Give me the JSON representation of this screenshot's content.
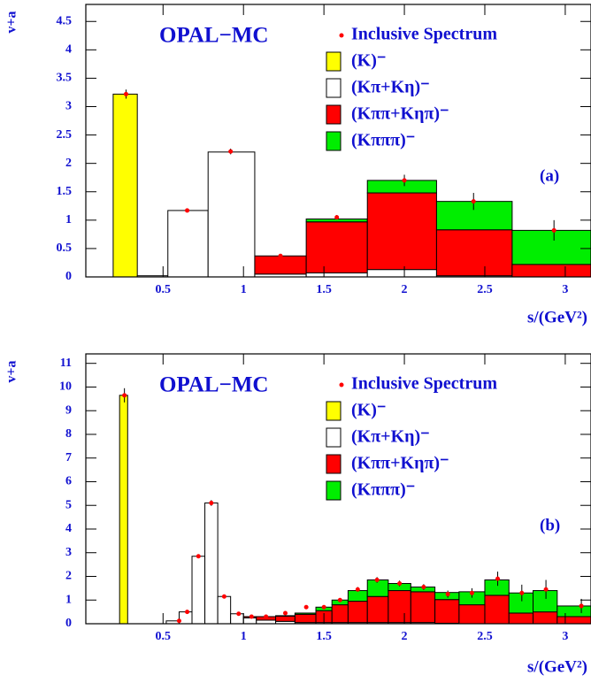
{
  "chart_data": [
    {
      "type": "histogram",
      "title": "OPAL−MC",
      "panel_label": "(a)",
      "ylabel": "v+a",
      "xlabel": "s/(GeV²)",
      "xlim": [
        0.02,
        3.16
      ],
      "ylim": [
        0,
        4.8
      ],
      "xticks": [
        0.5,
        1,
        1.5,
        2,
        2.5,
        3
      ],
      "yticks": [
        0,
        0.5,
        1,
        1.5,
        2,
        2.5,
        3,
        3.5,
        4,
        4.5
      ],
      "bins": [
        0.19,
        0.34,
        0.53,
        0.78,
        1.07,
        1.39,
        1.77,
        2.2,
        2.67,
        3.16
      ],
      "series": [
        {
          "name": "(K)⁻",
          "color": "#ffff00",
          "values": [
            3.22,
            0,
            0,
            0,
            0,
            0,
            0,
            0,
            0
          ]
        },
        {
          "name": "(Kπ+Kη)⁻",
          "color": "#ffffff",
          "values": [
            0,
            0.02,
            1.17,
            2.2,
            0.05,
            0.07,
            0.13,
            0.02,
            0
          ]
        },
        {
          "name": "(Kππ+Kηπ)⁻",
          "color": "#ff0000",
          "values": [
            0,
            0,
            0,
            0,
            0.32,
            0.9,
            1.35,
            0.81,
            0.22
          ]
        },
        {
          "name": "(Kπππ)⁻",
          "color": "#00ee00",
          "values": [
            0,
            0,
            0,
            0,
            0,
            0.05,
            0.22,
            0.5,
            0.6
          ]
        }
      ],
      "points": {
        "name": "Inclusive Spectrum",
        "color": "#ff0000",
        "x": [
          0.27,
          0.65,
          0.92,
          1.23,
          1.58,
          2.0,
          2.43,
          2.93
        ],
        "values": [
          3.22,
          1.17,
          2.21,
          0.37,
          1.05,
          1.7,
          1.33,
          0.82
        ],
        "errors": [
          0.08,
          0.02,
          0.05,
          0.02,
          0.04,
          0.1,
          0.15,
          0.18
        ]
      }
    },
    {
      "type": "histogram",
      "title": "OPAL−MC",
      "panel_label": "(b)",
      "ylabel": "v+a",
      "xlabel": "s/(GeV²)",
      "xlim": [
        0.02,
        3.16
      ],
      "ylim": [
        0,
        11.4
      ],
      "xticks": [
        0.5,
        1,
        1.5,
        2,
        2.5,
        3
      ],
      "yticks": [
        0,
        1,
        2,
        3,
        4,
        5,
        6,
        7,
        8,
        9,
        10,
        11
      ],
      "bins": [
        0.23,
        0.28,
        0.52,
        0.6,
        0.68,
        0.76,
        0.84,
        0.92,
        1.0,
        1.08,
        1.2,
        1.32,
        1.45,
        1.55,
        1.65,
        1.77,
        1.9,
        2.04,
        2.19,
        2.34,
        2.5,
        2.65,
        2.8,
        2.95,
        3.16
      ],
      "series": [
        {
          "name": "(K)⁻",
          "color": "#ffff00",
          "values": [
            9.65,
            0,
            0,
            0,
            0,
            0,
            0,
            0,
            0,
            0,
            0,
            0,
            0,
            0,
            0,
            0,
            0,
            0,
            0,
            0,
            0,
            0,
            0,
            0
          ]
        },
        {
          "name": "(Kπ+Kη)⁻",
          "color": "#ffffff",
          "values": [
            0,
            0,
            0.12,
            0.5,
            2.85,
            5.1,
            1.15,
            0.42,
            0.25,
            0.15,
            0.1,
            0.05,
            0.05,
            0.05,
            0.05,
            0.05,
            0.05,
            0.05,
            0.02,
            0,
            0,
            0,
            0,
            0
          ]
        },
        {
          "name": "(Kππ+Kηπ)⁻",
          "color": "#ff0000",
          "values": [
            0,
            0,
            0,
            0,
            0,
            0,
            0,
            0,
            0.05,
            0.15,
            0.22,
            0.35,
            0.5,
            0.75,
            0.9,
            1.1,
            1.35,
            1.3,
            1.0,
            0.8,
            1.2,
            0.45,
            0.5,
            0.3
          ]
        },
        {
          "name": "(Kπππ)⁻",
          "color": "#00ee00",
          "values": [
            0,
            0,
            0,
            0,
            0,
            0,
            0,
            0,
            0,
            0,
            0.02,
            0.05,
            0.15,
            0.2,
            0.45,
            0.7,
            0.3,
            0.2,
            0.3,
            0.55,
            0.65,
            0.85,
            0.9,
            0.45
          ]
        }
      ],
      "points": {
        "name": "Inclusive Spectrum",
        "color": "#ff0000",
        "x": [
          0.26,
          0.6,
          0.65,
          0.72,
          0.8,
          0.88,
          0.97,
          1.05,
          1.14,
          1.26,
          1.39,
          1.5,
          1.6,
          1.71,
          1.83,
          1.97,
          2.12,
          2.27,
          2.42,
          2.58,
          2.73,
          2.88,
          3.1
        ],
        "values": [
          9.65,
          0.12,
          0.5,
          2.85,
          5.1,
          1.15,
          0.42,
          0.3,
          0.3,
          0.45,
          0.7,
          0.7,
          1.0,
          1.45,
          1.85,
          1.7,
          1.55,
          1.25,
          1.3,
          1.9,
          1.3,
          1.45,
          0.75
        ],
        "errors": [
          0.3,
          0.02,
          0.03,
          0.08,
          0.12,
          0.05,
          0.03,
          0.03,
          0.03,
          0.05,
          0.05,
          0.06,
          0.08,
          0.1,
          0.12,
          0.12,
          0.12,
          0.15,
          0.2,
          0.3,
          0.35,
          0.4,
          0.3
        ]
      }
    }
  ]
}
